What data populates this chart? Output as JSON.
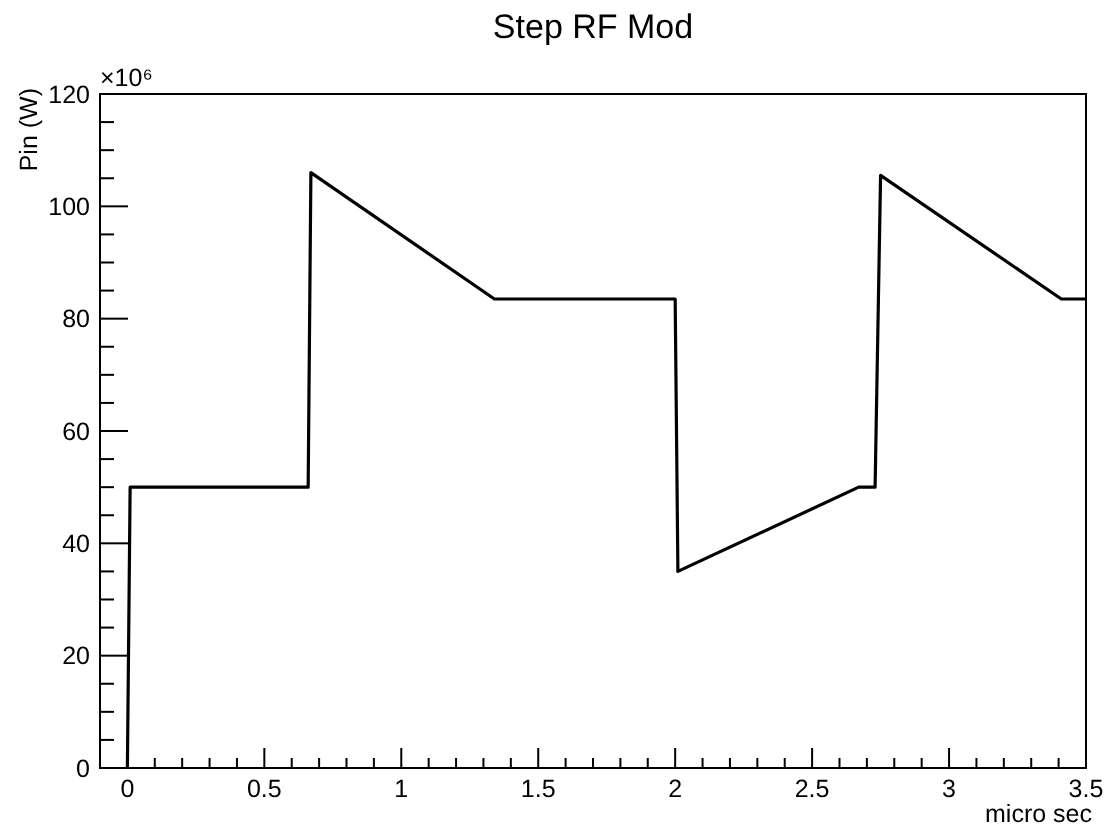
{
  "chart_data": {
    "type": "line",
    "title": "Step RF Mod",
    "xlabel": "micro sec",
    "ylabel": "Pin (W)",
    "annotations": [
      "×10⁶"
    ],
    "x": [
      0,
      0.01,
      0.66,
      0.67,
      1.34,
      2.0,
      2.01,
      2.67,
      2.73,
      2.75,
      3.41,
      3.5
    ],
    "values": [
      0,
      50,
      50,
      106,
      83.5,
      83.5,
      35,
      50,
      50,
      105.5,
      83.5,
      83.5
    ],
    "color": "#000000",
    "marker": "none",
    "line_style": "solid",
    "xlim": [
      -0.1,
      3.5
    ],
    "xticks": [
      0,
      {
        "value": 0.1,
        "label": null
      },
      {
        "value": 0.2,
        "label": null
      },
      {
        "value": 0.3,
        "label": null
      },
      {
        "value": 0.4,
        "label": null
      },
      0.5,
      {
        "value": 0.6,
        "label": null
      },
      {
        "value": 0.7,
        "label": null
      },
      {
        "value": 0.8,
        "label": null
      },
      {
        "value": 0.9,
        "label": null
      },
      1,
      {
        "value": 1.1,
        "label": null
      },
      {
        "value": 1.2,
        "label": null
      },
      {
        "value": 1.3,
        "label": null
      },
      {
        "value": 1.4,
        "label": null
      },
      1.5,
      {
        "value": 1.6,
        "label": null
      },
      {
        "value": 1.7,
        "label": null
      },
      {
        "value": 1.8,
        "label": null
      },
      {
        "value": 1.9,
        "label": null
      },
      2,
      {
        "value": 2.1,
        "label": null
      },
      {
        "value": 2.2,
        "label": null
      },
      {
        "value": 2.3,
        "label": null
      },
      {
        "value": 2.4,
        "label": null
      },
      2.5,
      {
        "value": 2.6,
        "label": null
      },
      {
        "value": 2.7,
        "label": null
      },
      {
        "value": 2.8,
        "label": null
      },
      {
        "value": 2.9,
        "label": null
      },
      3,
      {
        "value": 3.1,
        "label": null
      },
      {
        "value": 3.2,
        "label": null
      },
      {
        "value": 3.3,
        "label": null
      },
      {
        "value": 3.4,
        "label": null
      },
      3.5
    ],
    "ylim": [
      0,
      120
    ],
    "yticks": [
      0,
      {
        "value": 5,
        "label": null
      },
      {
        "value": 10,
        "label": null
      },
      {
        "value": 15,
        "label": null
      },
      20,
      {
        "value": 25,
        "label": null
      },
      {
        "value": 30,
        "label": null
      },
      {
        "value": 35,
        "label": null
      },
      40,
      {
        "value": 45,
        "label": null
      },
      {
        "value": 50,
        "label": null
      },
      {
        "value": 55,
        "label": null
      },
      60,
      {
        "value": 65,
        "label": null
      },
      {
        "value": 70,
        "label": null
      },
      {
        "value": 75,
        "label": null
      },
      80,
      {
        "value": 85,
        "label": null
      },
      {
        "value": 90,
        "label": null
      },
      {
        "value": 95,
        "label": null
      },
      100,
      {
        "value": 105,
        "label": null
      },
      {
        "value": 110,
        "label": null
      },
      {
        "value": 115,
        "label": null
      },
      120
    ]
  }
}
